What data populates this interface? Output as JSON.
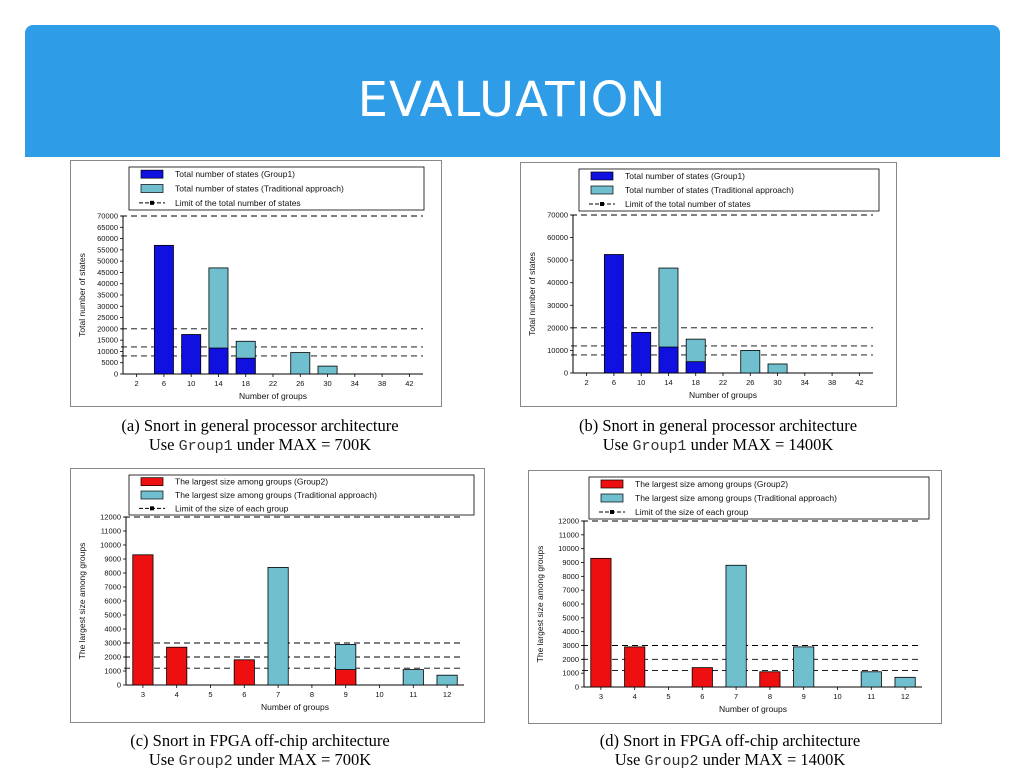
{
  "slide": {
    "title": "EVALUATION"
  },
  "colors": {
    "banner": "#2e9ce6",
    "group": "#1010e0",
    "traditional": "#6fbfcf",
    "red": "#ee1010"
  },
  "chart_data": [
    {
      "type": "bar",
      "categories": [
        "2",
        "6",
        "10",
        "14",
        "18",
        "22",
        "26",
        "30",
        "34",
        "38",
        "42"
      ],
      "series": [
        {
          "name": "Total number of states (Group1)",
          "values": [
            0,
            57000,
            17500,
            11500,
            7000,
            0,
            0,
            0,
            0,
            0,
            0
          ]
        },
        {
          "name": "Total number of states (Traditional approach)",
          "values": [
            0,
            0,
            0,
            47000,
            14500,
            0,
            9500,
            3500,
            0,
            0,
            0
          ]
        }
      ],
      "legend": [
        "Total number of states (Group1)",
        "Total number of states (Traditional approach)",
        "Limit of the total number of states"
      ],
      "limit_lines": [
        70000,
        20000,
        12000,
        8000
      ],
      "xlabel": "Number of groups",
      "ylabel": "Total number of states",
      "ylim": [
        0,
        70000
      ],
      "yticks": [
        "0",
        "5000",
        "10000",
        "15000",
        "20000",
        "25000",
        "30000",
        "35000",
        "40000",
        "45000",
        "50000",
        "55000",
        "60000",
        "65000",
        "70000"
      ],
      "caption_line1": "(a) Snort in general processor architecture",
      "caption_use": "Use",
      "caption_group": "Group1",
      "caption_rest": "under MAX = 700K"
    },
    {
      "type": "bar",
      "categories": [
        "2",
        "6",
        "10",
        "14",
        "18",
        "22",
        "26",
        "30",
        "34",
        "38",
        "42"
      ],
      "series": [
        {
          "name": "Total number of states (Group1)",
          "values": [
            0,
            52500,
            18000,
            11500,
            5000,
            0,
            0,
            0,
            0,
            0,
            0
          ]
        },
        {
          "name": "Total number of states (Traditional approach)",
          "values": [
            0,
            0,
            0,
            46500,
            15000,
            0,
            10000,
            4000,
            0,
            0,
            0
          ]
        }
      ],
      "legend": [
        "Total number of states (Group1)",
        "Total number of states (Traditional approach)",
        "Limit of the total number of states"
      ],
      "limit_lines": [
        70000,
        20000,
        12000,
        8000
      ],
      "xlabel": "Number of groups",
      "ylabel": "Total number of states",
      "ylim": [
        0,
        70000
      ],
      "yticks": [
        "0",
        "10000",
        "20000",
        "30000",
        "40000",
        "50000",
        "60000",
        "70000"
      ],
      "caption_line1": "(b) Snort in general processor architecture",
      "caption_use": "Use",
      "caption_group": "Group1",
      "caption_rest": "under  MAX = 1400K"
    },
    {
      "type": "bar",
      "categories": [
        "3",
        "4",
        "5",
        "6",
        "7",
        "8",
        "9",
        "10",
        "11",
        "12"
      ],
      "series": [
        {
          "name": "The largest size among groups (Group2)",
          "values": [
            9300,
            2700,
            0,
            1800,
            0,
            0,
            1100,
            0,
            0,
            0
          ]
        },
        {
          "name": "The largest size among groups (Traditional approach)",
          "values": [
            0,
            0,
            0,
            0,
            8400,
            0,
            2900,
            0,
            1100,
            700
          ]
        }
      ],
      "legend": [
        "The largest size among groups (Group2)",
        "The largest size among groups (Traditional approach)",
        "Limit of the size of each group"
      ],
      "limit_lines": [
        12000,
        3000,
        2000,
        1200
      ],
      "xlabel": "Number of groups",
      "ylabel": "The largest size among groups",
      "ylim": [
        0,
        12000
      ],
      "yticks": [
        "0",
        "1000",
        "2000",
        "3000",
        "4000",
        "5000",
        "6000",
        "7000",
        "8000",
        "9000",
        "10000",
        "11000",
        "12000"
      ],
      "caption_line1": "(c) Snort in FPGA off-chip architecture",
      "caption_use": "Use",
      "caption_group": "Group2",
      "caption_rest": "under MAX = 700K"
    },
    {
      "type": "bar",
      "categories": [
        "3",
        "4",
        "5",
        "6",
        "7",
        "8",
        "9",
        "10",
        "11",
        "12"
      ],
      "series": [
        {
          "name": "The largest size among groups (Group2)",
          "values": [
            9300,
            2900,
            0,
            1400,
            0,
            1100,
            0,
            0,
            0,
            0
          ]
        },
        {
          "name": "The largest size among groups (Traditional approach)",
          "values": [
            0,
            0,
            0,
            0,
            8800,
            0,
            2900,
            0,
            1100,
            700
          ]
        }
      ],
      "legend": [
        "The largest size among groups (Group2)",
        "The largest size among groups (Traditional approach)",
        "Limit of the size of each group"
      ],
      "limit_lines": [
        12000,
        3000,
        2000,
        1200
      ],
      "xlabel": "Number of groups",
      "ylabel": "The largest size among groups",
      "ylim": [
        0,
        12000
      ],
      "yticks": [
        "0",
        "1000",
        "2000",
        "3000",
        "4000",
        "5000",
        "6000",
        "7000",
        "8000",
        "9000",
        "10000",
        "11000",
        "12000"
      ],
      "caption_line1": "(d) Snort in FPGA off-chip architecture",
      "caption_use": "Use",
      "caption_group": "Group2",
      "caption_rest": "under  MAX = 1400K"
    }
  ]
}
